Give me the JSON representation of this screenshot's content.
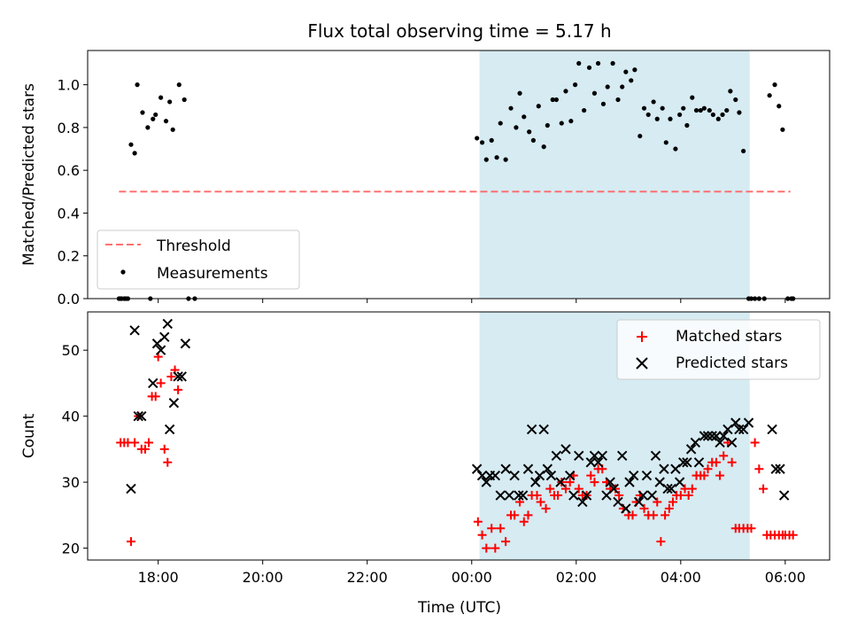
{
  "chart_data": {
    "type": "scatter",
    "title": "Flux total observing time = 5.17 h",
    "xlabel": "Time (UTC)",
    "x_units": "hours since 00:00 UTC (negative = previous evening)",
    "xlim": [
      -7.35,
      6.85
    ],
    "xticks": [
      -6,
      -4,
      -2,
      0,
      2,
      4,
      6
    ],
    "xtick_labels": [
      "18:00",
      "20:00",
      "22:00",
      "00:00",
      "02:00",
      "04:00",
      "06:00"
    ],
    "shaded_interval": [
      0.15,
      5.32
    ],
    "colors": {
      "shade": "#add8e6",
      "threshold": "#ff7070",
      "matched": "#ff0000",
      "measurement": "#000000",
      "predicted": "#000000"
    },
    "panels": [
      {
        "id": "ratio",
        "ylabel": "Matched/Predicted stars",
        "ylim": [
          0.0,
          1.16
        ],
        "yticks": [
          0.0,
          0.2,
          0.4,
          0.6,
          0.8,
          1.0
        ],
        "ytick_labels": [
          "0.0",
          "0.2",
          "0.4",
          "0.6",
          "0.8",
          "1.0"
        ],
        "legend_position": "lower-left",
        "threshold": {
          "name": "Threshold",
          "value": 0.5,
          "x_range": [
            -6.75,
            6.1
          ]
        },
        "measurements": {
          "name": "Measurements",
          "x": [
            -6.72,
            -6.65,
            -6.58,
            -6.52,
            -6.45,
            -6.4,
            -6.3,
            -6.2,
            -6.1,
            -6.05,
            -5.95,
            -5.85,
            -5.78,
            -5.72,
            -5.6,
            -5.5,
            -5.42,
            -5.3,
            -6.75,
            -6.7,
            -6.62,
            -6.15,
            0.1,
            0.2,
            0.28,
            0.38,
            0.48,
            0.55,
            0.65,
            0.75,
            0.85,
            0.92,
            1.0,
            1.1,
            1.18,
            1.28,
            1.38,
            1.45,
            1.55,
            1.62,
            1.72,
            1.8,
            1.9,
            1.98,
            2.05,
            2.15,
            2.25,
            2.35,
            2.42,
            2.52,
            2.6,
            2.7,
            2.8,
            2.88,
            2.95,
            3.05,
            3.12,
            3.22,
            3.3,
            3.38,
            3.48,
            3.55,
            3.65,
            3.72,
            3.8,
            3.9,
            3.98,
            4.05,
            4.12,
            4.22,
            4.3,
            4.38,
            4.45,
            4.55,
            4.62,
            4.72,
            4.8,
            4.88,
            4.95,
            5.05,
            5.12,
            5.2,
            5.3,
            5.35,
            5.42,
            5.5,
            5.6,
            5.7,
            5.8,
            5.88,
            5.95,
            6.05,
            6.15,
            6.12
          ],
          "y": [
            0.0,
            0.0,
            0.0,
            0.72,
            0.68,
            1.0,
            0.87,
            0.8,
            0.84,
            0.86,
            0.94,
            0.83,
            0.92,
            0.79,
            1.0,
            0.93,
            0.0,
            0.0,
            0.0,
            0.0,
            0.0,
            0.0,
            0.75,
            0.73,
            0.65,
            0.74,
            0.66,
            0.82,
            0.65,
            0.89,
            0.8,
            0.96,
            0.85,
            0.78,
            0.74,
            0.9,
            0.71,
            0.81,
            0.93,
            0.93,
            0.82,
            0.97,
            0.83,
            1.0,
            1.1,
            0.88,
            1.08,
            0.96,
            1.1,
            0.91,
            0.99,
            1.1,
            0.93,
            0.99,
            1.06,
            1.02,
            1.07,
            0.76,
            0.89,
            0.86,
            0.92,
            0.84,
            0.89,
            0.73,
            0.84,
            0.7,
            0.86,
            0.89,
            0.81,
            0.94,
            0.88,
            0.88,
            0.89,
            0.88,
            0.86,
            0.84,
            0.86,
            0.88,
            0.97,
            0.93,
            0.87,
            0.69,
            0.0,
            0.0,
            0.0,
            0.0,
            0.0,
            0.95,
            1.0,
            0.9,
            0.79,
            0.0,
            0.0,
            0.0
          ]
        }
      },
      {
        "id": "count",
        "ylabel": "Count",
        "ylim": [
          18.2,
          55.8
        ],
        "yticks": [
          20,
          30,
          40,
          50
        ],
        "ytick_labels": [
          "20",
          "30",
          "40",
          "50"
        ],
        "legend_position": "upper-right",
        "matched": {
          "name": "Matched stars",
          "x": [
            -6.72,
            -6.65,
            -6.58,
            -6.52,
            -6.45,
            -6.38,
            -6.32,
            -6.25,
            -6.18,
            -6.12,
            -6.05,
            -6.0,
            -5.95,
            -5.88,
            -5.82,
            -5.75,
            -5.68,
            -5.62,
            0.12,
            0.2,
            0.28,
            0.38,
            0.45,
            0.55,
            0.65,
            0.75,
            0.82,
            0.92,
            1.0,
            1.08,
            1.15,
            1.25,
            1.32,
            1.42,
            1.5,
            1.58,
            1.65,
            1.72,
            1.8,
            1.88,
            1.95,
            2.05,
            2.12,
            2.2,
            2.28,
            2.35,
            2.42,
            2.5,
            2.58,
            2.65,
            2.75,
            2.82,
            2.9,
            3.0,
            3.08,
            3.15,
            3.22,
            3.3,
            3.38,
            3.48,
            3.55,
            3.62,
            3.7,
            3.78,
            3.85,
            3.92,
            4.0,
            4.08,
            4.15,
            4.22,
            4.3,
            4.38,
            4.45,
            4.52,
            4.6,
            4.68,
            4.75,
            4.82,
            4.9,
            4.98,
            5.05,
            5.12,
            5.2,
            5.28,
            5.35,
            5.42,
            5.5,
            5.58,
            5.65,
            5.72,
            5.8,
            5.88,
            5.95,
            6.0,
            6.08,
            6.15
          ],
          "y": [
            36,
            36,
            36,
            21,
            36,
            40,
            35,
            35,
            36,
            43,
            43,
            49,
            45,
            35,
            33,
            46,
            47,
            44,
            24,
            22,
            20,
            23,
            20,
            23,
            21,
            25,
            25,
            27,
            24,
            25,
            28,
            28,
            27,
            26,
            29,
            28,
            28,
            30,
            29,
            30,
            31,
            29,
            28,
            28,
            31,
            30,
            32,
            32,
            30,
            29,
            29,
            28,
            26,
            25,
            25,
            27,
            28,
            26,
            25,
            25,
            27,
            21,
            25,
            26,
            27,
            28,
            28,
            29,
            28,
            29,
            31,
            31,
            31,
            32,
            33,
            33,
            31,
            34,
            36,
            33,
            23,
            23,
            23,
            23,
            23,
            36,
            32,
            29,
            22,
            22,
            22,
            22,
            22,
            22,
            22,
            22
          ]
        },
        "predicted": {
          "name": "Predicted stars",
          "x": [
            -6.52,
            -6.45,
            -6.38,
            -6.32,
            -6.1,
            -6.02,
            -5.95,
            -5.88,
            -5.82,
            -5.78,
            -5.7,
            -5.62,
            -5.55,
            -5.48,
            0.1,
            0.2,
            0.28,
            0.35,
            0.45,
            0.55,
            0.65,
            0.72,
            0.82,
            0.9,
            0.98,
            1.08,
            1.15,
            1.22,
            1.3,
            1.38,
            1.45,
            1.52,
            1.62,
            1.7,
            1.8,
            1.88,
            1.95,
            2.05,
            2.12,
            2.2,
            2.28,
            2.35,
            2.42,
            2.5,
            2.58,
            2.65,
            2.72,
            2.8,
            2.88,
            2.95,
            3.02,
            3.1,
            3.2,
            3.28,
            3.35,
            3.45,
            3.52,
            3.6,
            3.68,
            3.75,
            3.82,
            3.9,
            3.98,
            4.05,
            4.12,
            4.2,
            4.28,
            4.35,
            4.45,
            4.52,
            4.6,
            4.68,
            4.75,
            4.82,
            4.9,
            4.98,
            5.05,
            5.12,
            5.2,
            5.3,
            5.75,
            5.82,
            5.9,
            5.98
          ],
          "y": [
            29,
            53,
            40,
            40,
            45,
            51,
            50,
            52,
            54,
            38,
            42,
            46,
            46,
            51,
            32,
            31,
            30,
            31,
            31,
            28,
            32,
            28,
            31,
            28,
            28,
            32,
            38,
            30,
            31,
            38,
            32,
            31,
            34,
            30,
            35,
            31,
            28,
            34,
            27,
            28,
            33,
            34,
            33,
            34,
            28,
            30,
            29,
            27,
            34,
            26,
            30,
            31,
            27,
            28,
            31,
            28,
            34,
            30,
            32,
            29,
            29,
            32,
            30,
            33,
            33,
            35,
            36,
            33,
            37,
            37,
            37,
            37,
            36,
            37,
            38,
            36,
            39,
            38,
            38,
            39,
            38,
            32,
            32,
            28
          ]
        }
      }
    ]
  }
}
